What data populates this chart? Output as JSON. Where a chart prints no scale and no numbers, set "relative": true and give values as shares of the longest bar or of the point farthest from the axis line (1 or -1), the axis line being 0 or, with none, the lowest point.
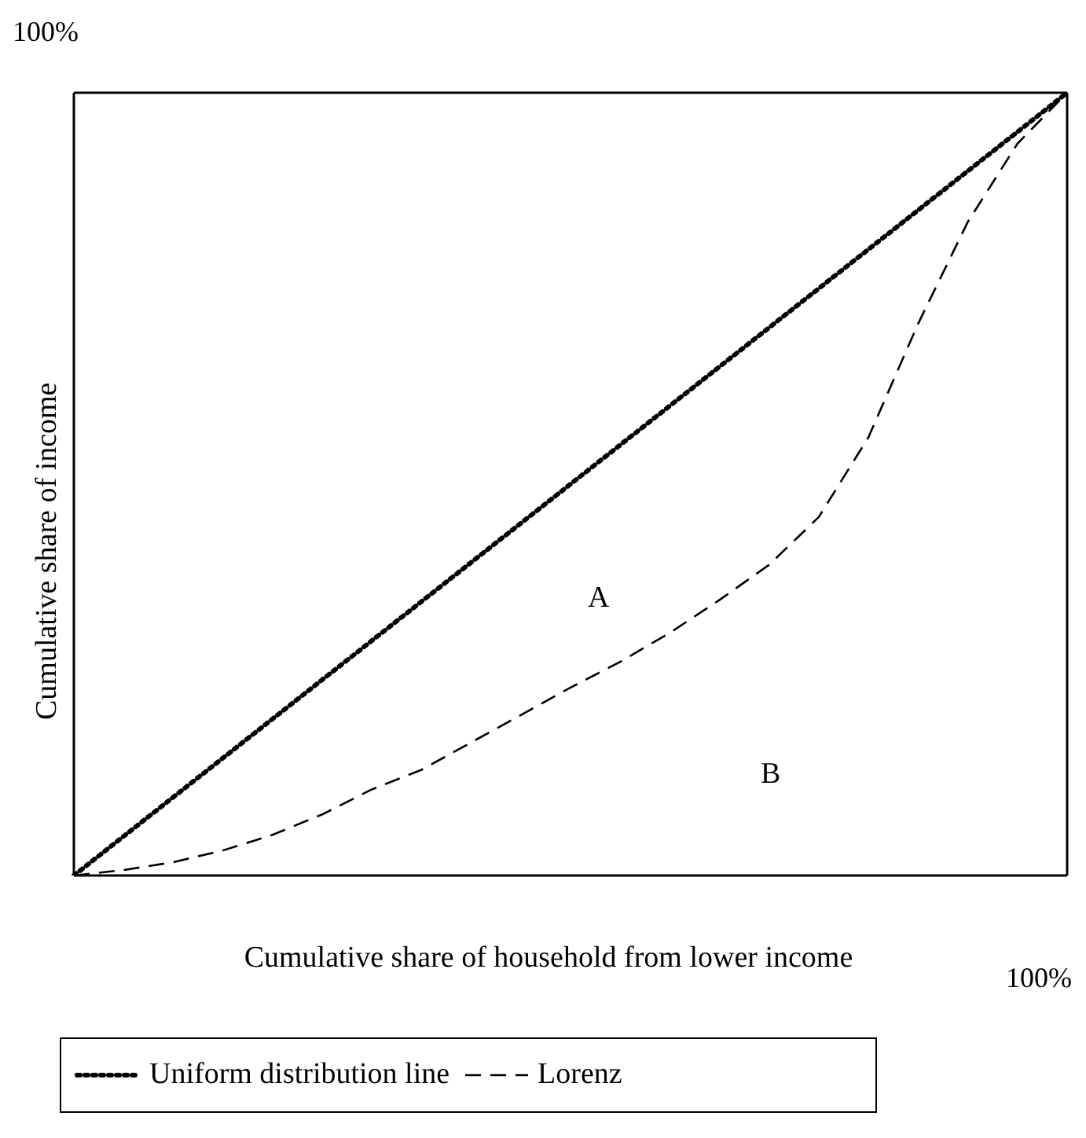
{
  "chart_data": {
    "type": "line",
    "relative": true,
    "xlabel": "Cumulative share of household from lower income",
    "ylabel": "Cumulative share of income",
    "legend": "bottom",
    "marker": "none",
    "annotations": [
      "100%",
      "100%",
      "A",
      "B"
    ],
    "categories": [
      null,
      null,
      null,
      null,
      null,
      null,
      null,
      null,
      null,
      null,
      null,
      null,
      null,
      null,
      null,
      null,
      null,
      null,
      null,
      null,
      null
    ],
    "series": [
      {
        "name": "Uniform distribution line",
        "color": "#000000",
        "line_style": "dotted",
        "values": [
          0,
          0.05,
          0.1,
          0.15,
          0.2,
          0.25,
          0.3,
          0.35,
          0.4,
          0.45,
          0.5,
          0.55,
          0.6,
          0.65,
          0.7,
          0.75,
          0.8,
          0.85,
          0.9,
          0.95,
          1
        ]
      },
      {
        "name": "Lorenz",
        "color": "#000000",
        "line_style": "dashed",
        "values": [
          0,
          0.007,
          0.017,
          0.032,
          0.052,
          0.078,
          0.11,
          0.135,
          0.17,
          0.205,
          0.24,
          0.273,
          0.31,
          0.352,
          0.397,
          0.458,
          0.56,
          0.705,
          0.835,
          0.935,
          1
        ]
      }
    ]
  }
}
